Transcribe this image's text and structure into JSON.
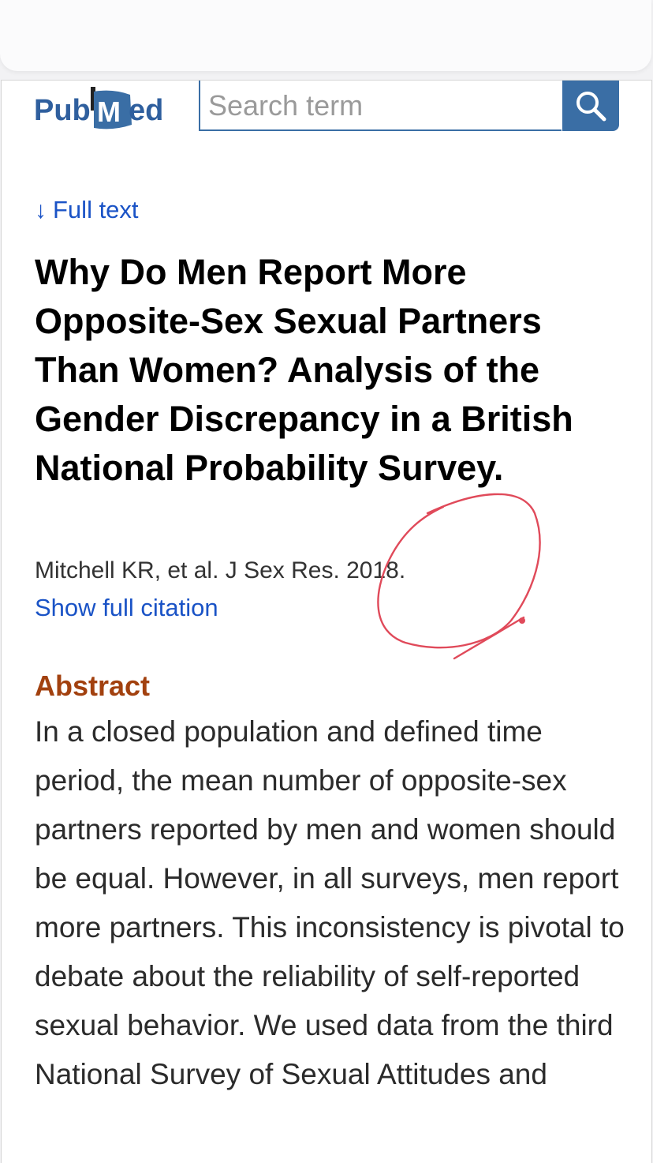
{
  "header": {
    "logo_text": "PubMed",
    "search_placeholder": "Search term",
    "search_icon": "magnifier-icon"
  },
  "article": {
    "full_text_link": "Full text",
    "full_text_icon": "down-arrow",
    "title": "Why Do Men Report More Opposite-Sex Sexual Partners Than Women? Analysis of the Gender Discrepancy in a British National Probability Survey.",
    "citation": "Mitchell KR, et al. J Sex Res. 2018.",
    "show_full_citation": "Show full citation"
  },
  "abstract": {
    "heading": "Abstract",
    "text": "In a closed population and defined time period, the mean number of opposite-sex partners reported by men and women should be equal. However, in all surveys, men report more partners. This inconsistency is pivotal to debate about the reliability of self-reported sexual behavior. We used data from the third National Survey of Sexual Attitudes and"
  },
  "colors": {
    "brand_blue": "#3a6ea5",
    "link_blue": "#1a53c6",
    "abstract_heading": "#a2410f",
    "annotation_red": "#e04a5a"
  }
}
